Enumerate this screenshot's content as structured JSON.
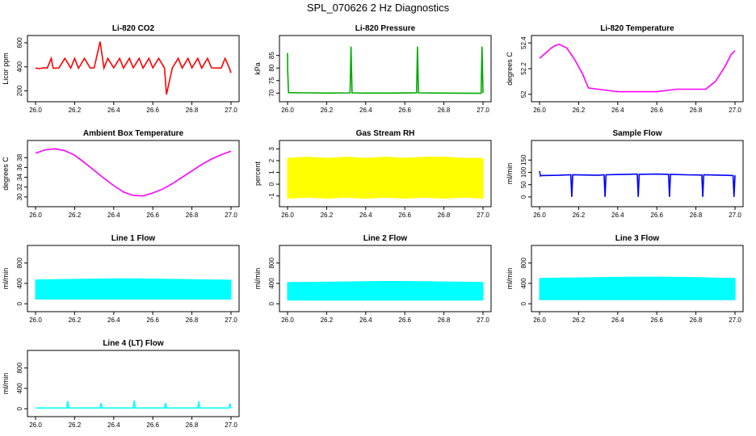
{
  "page": {
    "title": "SPL_070626  2 Hz Diagnostics"
  },
  "chart_data": [
    {
      "type": "line",
      "title": "Li-820 CO2",
      "ylabel": "Licor ppm",
      "color": "#ff0000",
      "xlim": [
        26.0,
        27.0
      ],
      "ylim": [
        150,
        620
      ],
      "yticks": [
        200,
        400,
        600
      ],
      "xticks": [
        "26.0",
        "26.2",
        "26.4",
        "26.6",
        "26.8",
        "27.0"
      ],
      "series": [
        {
          "x": [
            26.0,
            26.02,
            26.04,
            26.06,
            26.08,
            26.09,
            26.1,
            26.12,
            26.15,
            26.18,
            26.2,
            26.22,
            26.25,
            26.28,
            26.3,
            26.33,
            26.35,
            26.37,
            26.4,
            26.43,
            26.45,
            26.48,
            26.5,
            26.53,
            26.55,
            26.58,
            26.6,
            26.63,
            26.66,
            26.67,
            26.7,
            26.73,
            26.75,
            26.78,
            26.8,
            26.83,
            26.85,
            26.88,
            26.9,
            26.95,
            26.97,
            26.99,
            27.0
          ],
          "y": [
            390,
            385,
            392,
            390,
            470,
            390,
            388,
            392,
            470,
            390,
            470,
            388,
            470,
            390,
            392,
            610,
            390,
            470,
            392,
            470,
            390,
            470,
            392,
            470,
            390,
            470,
            392,
            470,
            390,
            170,
            392,
            470,
            390,
            470,
            392,
            470,
            390,
            470,
            392,
            390,
            470,
            395,
            350
          ]
        }
      ]
    },
    {
      "type": "line",
      "title": "Li-820 Pressure",
      "ylabel": "kPa",
      "color": "#00aa00",
      "xlim": [
        26.0,
        27.0
      ],
      "ylim": [
        68.5,
        91
      ],
      "yticks": [
        70,
        75,
        80,
        85
      ],
      "xticks": [
        "26.0",
        "26.2",
        "26.4",
        "26.6",
        "26.8",
        "27.0"
      ],
      "series": [
        {
          "x": [
            26.0,
            26.001,
            26.005,
            26.1,
            26.2,
            26.32,
            26.325,
            26.33,
            26.4,
            26.5,
            26.66,
            26.665,
            26.67,
            26.8,
            26.99,
            26.995,
            27.0
          ],
          "y": [
            86,
            79,
            70.2,
            70.1,
            70.0,
            70.1,
            88.5,
            70.1,
            70.0,
            70.0,
            70.1,
            88.5,
            70.1,
            70.0,
            69.9,
            88.5,
            70.0
          ]
        }
      ]
    },
    {
      "type": "line",
      "title": "Li-820 Temperature",
      "ylabel": "degrees C",
      "color": "#ff00ff",
      "xlim": [
        26.0,
        27.0
      ],
      "ylim": [
        51.98,
        52.42
      ],
      "yticks": [
        52.0,
        52.2,
        52.4
      ],
      "xticks": [
        "26.0",
        "26.2",
        "26.4",
        "26.6",
        "26.8",
        "27.0"
      ],
      "series": [
        {
          "x": [
            26.0,
            26.03,
            26.06,
            26.08,
            26.1,
            26.14,
            26.18,
            26.22,
            26.25,
            26.3,
            26.4,
            26.5,
            26.6,
            26.7,
            26.8,
            26.85,
            26.9,
            26.95,
            26.98,
            27.0
          ],
          "y": [
            52.28,
            52.32,
            52.36,
            52.38,
            52.39,
            52.36,
            52.27,
            52.16,
            52.05,
            52.04,
            52.02,
            52.02,
            52.02,
            52.04,
            52.04,
            52.04,
            52.1,
            52.22,
            52.31,
            52.34
          ]
        }
      ]
    },
    {
      "type": "line",
      "title": "Ambient Box Temperature",
      "ylabel": "degrees C",
      "color": "#ff00ff",
      "xlim": [
        26.0,
        27.0
      ],
      "ylim": [
        29,
        40.5
      ],
      "yticks": [
        30,
        32,
        34,
        36,
        38
      ],
      "xticks": [
        "26.0",
        "26.2",
        "26.4",
        "26.6",
        "26.8",
        "27.0"
      ],
      "series": [
        {
          "x": [
            26.0,
            26.05,
            26.1,
            26.15,
            26.2,
            26.25,
            26.3,
            26.35,
            26.4,
            26.45,
            26.5,
            26.55,
            26.6,
            26.65,
            26.7,
            26.75,
            26.8,
            26.85,
            26.9,
            26.95,
            27.0
          ],
          "y": [
            38.9,
            39.6,
            39.8,
            39.4,
            38.5,
            37.0,
            35.4,
            33.8,
            32.3,
            31.0,
            30.3,
            30.2,
            30.8,
            31.6,
            32.7,
            34.0,
            35.3,
            36.6,
            37.7,
            38.6,
            39.3
          ]
        }
      ]
    },
    {
      "type": "area",
      "title": "Gas Stream RH",
      "ylabel": "percent",
      "color": "#ffff00",
      "xlim": [
        26.0,
        27.0
      ],
      "ylim": [
        -1.5,
        3.3
      ],
      "yticks": [
        -1,
        0,
        1,
        2,
        3
      ],
      "xticks": [
        "26.0",
        "26.2",
        "26.4",
        "26.6",
        "26.8",
        "27.0"
      ],
      "series": [
        {
          "x": [
            26.0,
            26.1,
            26.2,
            26.3,
            26.4,
            26.5,
            26.6,
            26.7,
            26.8,
            26.9,
            27.0
          ],
          "upper": [
            2.2,
            2.3,
            2.2,
            2.3,
            2.2,
            2.3,
            2.2,
            2.3,
            2.3,
            2.2,
            2.2
          ],
          "lower": [
            -1.2,
            -1.1,
            -1.2,
            -1.1,
            -1.2,
            -1.1,
            -1.2,
            -1.1,
            -1.2,
            -1.1,
            -1.2
          ]
        }
      ]
    },
    {
      "type": "line",
      "title": "Sample Flow",
      "ylabel": "ml/min",
      "color": "#0000ff",
      "xlim": [
        26.0,
        27.0
      ],
      "ylim": [
        -20,
        210
      ],
      "yticks": [
        0,
        50,
        100,
        150
      ],
      "xticks": [
        "26.0",
        "26.2",
        "26.4",
        "26.6",
        "26.8",
        "27.0"
      ],
      "series": [
        {
          "x": [
            26.0,
            26.005,
            26.01,
            26.1,
            26.16,
            26.165,
            26.17,
            26.3,
            26.33,
            26.335,
            26.34,
            26.45,
            26.5,
            26.505,
            26.51,
            26.6,
            26.66,
            26.665,
            26.67,
            26.75,
            26.83,
            26.835,
            26.84,
            26.95,
            26.99,
            26.995,
            27.0
          ],
          "y": [
            105,
            85,
            87,
            88,
            90,
            0,
            90,
            88,
            90,
            0,
            90,
            92,
            93,
            0,
            92,
            93,
            92,
            0,
            92,
            90,
            89,
            0,
            90,
            88,
            87,
            0,
            88
          ]
        }
      ]
    },
    {
      "type": "area",
      "title": "Line 1 Flow",
      "ylabel": "ml/min",
      "color": "#00ffff",
      "xlim": [
        26.0,
        27.0
      ],
      "ylim": [
        -60,
        1050
      ],
      "yticks": [
        0,
        400,
        800
      ],
      "xticks": [
        "26.0",
        "26.2",
        "26.4",
        "26.6",
        "26.8",
        "27.0"
      ],
      "series": [
        {
          "x": [
            26.0,
            26.1,
            26.2,
            26.3,
            26.4,
            26.5,
            26.6,
            26.7,
            26.8,
            26.9,
            27.0
          ],
          "upper": [
            470,
            475,
            480,
            485,
            490,
            490,
            485,
            480,
            475,
            470,
            465
          ],
          "lower": [
            90,
            90,
            90,
            90,
            90,
            90,
            90,
            90,
            90,
            90,
            90
          ]
        }
      ]
    },
    {
      "type": "area",
      "title": "Line 2 Flow",
      "ylabel": "ml/min",
      "color": "#00ffff",
      "xlim": [
        26.0,
        27.0
      ],
      "ylim": [
        -60,
        1050
      ],
      "yticks": [
        0,
        400,
        800
      ],
      "xticks": [
        "26.0",
        "26.2",
        "26.4",
        "26.6",
        "26.8",
        "27.0"
      ],
      "series": [
        {
          "x": [
            26.0,
            26.1,
            26.2,
            26.3,
            26.4,
            26.5,
            26.6,
            26.7,
            26.8,
            26.9,
            27.0
          ],
          "upper": [
            420,
            420,
            425,
            430,
            435,
            440,
            440,
            435,
            430,
            425,
            420
          ],
          "lower": [
            70,
            70,
            70,
            70,
            70,
            70,
            70,
            70,
            70,
            70,
            70
          ]
        }
      ]
    },
    {
      "type": "area",
      "title": "Line 3 Flow",
      "ylabel": "ml/min",
      "color": "#00ffff",
      "xlim": [
        26.0,
        27.0
      ],
      "ylim": [
        -60,
        1050
      ],
      "yticks": [
        0,
        400,
        800
      ],
      "xticks": [
        "26.0",
        "26.2",
        "26.4",
        "26.6",
        "26.8",
        "27.0"
      ],
      "series": [
        {
          "x": [
            26.0,
            26.1,
            26.2,
            26.3,
            26.4,
            26.5,
            26.6,
            26.7,
            26.8,
            26.9,
            27.0
          ],
          "upper": [
            500,
            505,
            510,
            515,
            520,
            525,
            525,
            520,
            515,
            505,
            500
          ],
          "lower": [
            80,
            80,
            80,
            80,
            80,
            80,
            80,
            80,
            80,
            80,
            80
          ]
        }
      ]
    },
    {
      "type": "line",
      "title": "Line 4 (LT) Flow",
      "ylabel": "ml/min",
      "color": "#00ffff",
      "xlim": [
        26.0,
        27.0
      ],
      "ylim": [
        -60,
        1050
      ],
      "yticks": [
        0,
        400,
        800
      ],
      "xticks": [
        "26.0",
        "26.2",
        "26.4",
        "26.6",
        "26.8",
        "27.0"
      ],
      "series": [
        {
          "x": [
            26.0,
            26.16,
            26.165,
            26.17,
            26.33,
            26.335,
            26.34,
            26.5,
            26.505,
            26.51,
            26.66,
            26.665,
            26.67,
            26.83,
            26.835,
            26.84,
            26.99,
            26.995,
            27.0
          ],
          "y": [
            15,
            15,
            150,
            15,
            15,
            110,
            15,
            15,
            160,
            15,
            15,
            110,
            15,
            15,
            140,
            15,
            15,
            100,
            15
          ]
        }
      ]
    }
  ]
}
